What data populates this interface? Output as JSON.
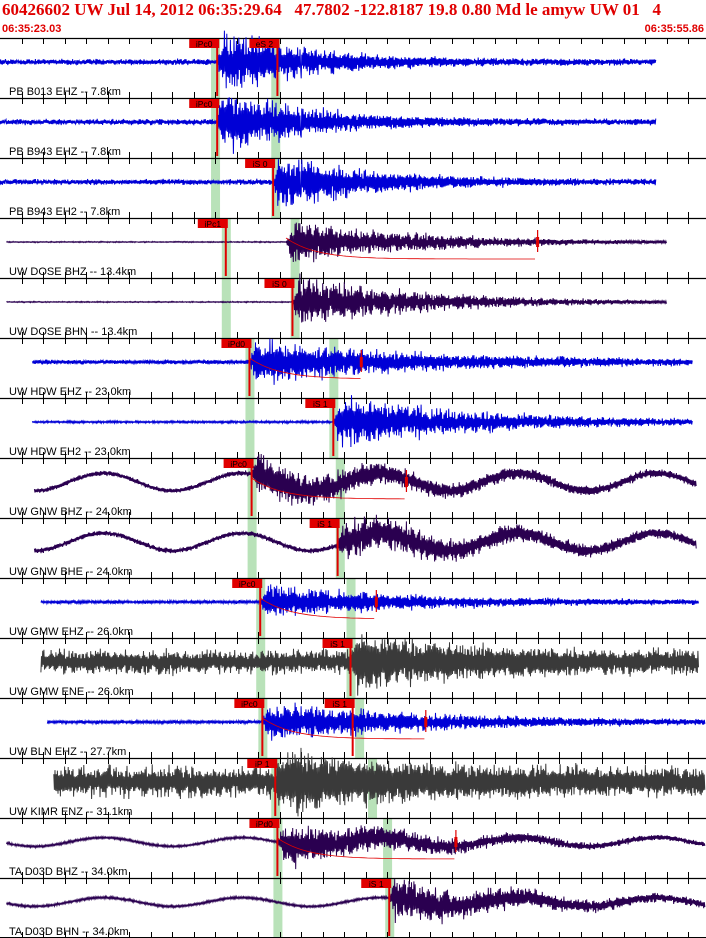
{
  "header": {
    "title": "60426602 UW Jul 14, 2012 06:35:29.64   47.7802 -122.8187 19.8 0.80 Md le amyw UW 01   4",
    "start_time": "06:35:23.03",
    "end_time": "06:35:55.86"
  },
  "colors": {
    "header_text": "#e00000",
    "pick": "#e00000",
    "green_band": "#b9e2b9",
    "trace_blue": "#0000d6",
    "trace_purple": "#2a0050",
    "trace_gray": "#3a3a3a",
    "grid": "#000000"
  },
  "chart_data": {
    "type": "seismogram",
    "x_axis": {
      "start": "06:35:23.03",
      "end": "06:35:55.86",
      "duration_s": 32.83,
      "grid_step_s": 1
    },
    "traces": [
      {
        "label": "PB B013 EHZ -- 7.8km",
        "color": "blue",
        "amp": 5,
        "noise": "low",
        "trace_start_s": 0.0,
        "trace_end_s": 30.5,
        "picks": [
          {
            "label": "iPc0",
            "t_s": 10.1
          },
          {
            "label": "eS 2",
            "t_s": 12.9
          }
        ],
        "bands": [
          10.0,
          12.8
        ],
        "signal_start_s": 10.1,
        "signal_peak": 32,
        "coda_s": 4
      },
      {
        "label": "PB B943 EHZ -- 7.8km",
        "color": "blue",
        "amp": 5,
        "noise": "low",
        "trace_start_s": 0.0,
        "trace_end_s": 30.5,
        "picks": [
          {
            "label": "iPc0",
            "t_s": 10.1
          }
        ],
        "bands": [
          10.0,
          12.8
        ],
        "signal_start_s": 10.1,
        "signal_peak": 32,
        "coda_s": 4
      },
      {
        "label": "PB B943 EH2 -- 7.8km",
        "color": "blue",
        "amp": 5,
        "noise": "low",
        "trace_start_s": 0.0,
        "trace_end_s": 30.5,
        "picks": [
          {
            "label": "iS 0",
            "t_s": 12.7
          }
        ],
        "bands": [
          10.0,
          12.8
        ],
        "signal_start_s": 12.7,
        "signal_peak": 28,
        "coda_s": 4
      },
      {
        "label": "UW DOSE BHZ -- 13.4km",
        "color": "purple",
        "amp": 1,
        "noise": "low",
        "trace_start_s": 0.3,
        "trace_end_s": 31.0,
        "picks": [
          {
            "label": "iPc1",
            "t_s": 10.5
          }
        ],
        "bands": [
          10.5,
          13.7
        ],
        "signal_start_s": 13.3,
        "signal_peak": 22,
        "coda_s": 6,
        "coda_marker_s": 25.0
      },
      {
        "label": "UW DOSE BHN -- 13.4km",
        "color": "purple",
        "amp": 1,
        "noise": "low",
        "trace_start_s": 0.3,
        "trace_end_s": 31.0,
        "picks": [
          {
            "label": "iS 0",
            "t_s": 13.6
          }
        ],
        "bands": [
          10.5,
          13.7
        ],
        "signal_start_s": 13.6,
        "signal_peak": 24,
        "coda_s": 6
      },
      {
        "label": "UW HDW EHZ -- 23.0km",
        "color": "blue",
        "amp": 4,
        "noise": "mid",
        "trace_start_s": 1.5,
        "trace_end_s": 32.2,
        "picks": [
          {
            "label": "iPd0",
            "t_s": 11.6
          }
        ],
        "bands": [
          11.6,
          15.5
        ],
        "signal_start_s": 11.6,
        "signal_peak": 20,
        "coda_s": 8,
        "coda_marker_s": 16.8
      },
      {
        "label": "UW HDW EH2 -- 23.0km",
        "color": "blue",
        "amp": 2,
        "noise": "mid",
        "trace_start_s": 1.5,
        "trace_end_s": 32.2,
        "picks": [
          {
            "label": "iS 1",
            "t_s": 15.5
          }
        ],
        "bands": [
          11.6,
          15.5
        ],
        "signal_start_s": 15.5,
        "signal_peak": 24,
        "coda_s": 7
      },
      {
        "label": "UW GNW BHZ -- 24.0km",
        "color": "purple",
        "amp": 4,
        "noise": "wave",
        "trace_start_s": 1.6,
        "trace_end_s": 32.4,
        "picks": [
          {
            "label": "iPc0",
            "t_s": 11.7
          }
        ],
        "bands": [
          11.7,
          15.8
        ],
        "signal_start_s": 11.7,
        "signal_peak": 18,
        "coda_s": 8,
        "coda_marker_s": 18.9
      },
      {
        "label": "UW GNW BHE -- 24.0km",
        "color": "purple",
        "amp": 4,
        "noise": "wave",
        "trace_start_s": 1.6,
        "trace_end_s": 32.4,
        "picks": [
          {
            "label": "iS 1",
            "t_s": 15.7
          }
        ],
        "bands": [
          11.7,
          15.8
        ],
        "signal_start_s": 15.7,
        "signal_peak": 18,
        "coda_s": 8
      },
      {
        "label": "UW GMW EHZ -- 26.0km",
        "color": "blue",
        "amp": 3,
        "noise": "mid",
        "trace_start_s": 1.9,
        "trace_end_s": 32.5,
        "picks": [
          {
            "label": "iPc0",
            "t_s": 12.1
          }
        ],
        "bands": [
          12.1,
          16.3
        ],
        "signal_start_s": 12.1,
        "signal_peak": 16,
        "coda_s": 7,
        "coda_marker_s": 17.5
      },
      {
        "label": "UW GMW ENE -- 26.0km",
        "color": "gray",
        "amp": 11,
        "noise": "high",
        "trace_start_s": 1.9,
        "trace_end_s": 32.5,
        "picks": [
          {
            "label": "iS 1",
            "t_s": 16.3
          }
        ],
        "bands": [
          12.1,
          16.3
        ],
        "signal_start_s": 16.3,
        "signal_peak": 20,
        "coda_s": 5
      },
      {
        "label": "UW BLN EHZ -- 27.7km",
        "color": "blue",
        "amp": 3,
        "noise": "mid",
        "trace_start_s": 2.2,
        "trace_end_s": 32.8,
        "picks": [
          {
            "label": "iPc0",
            "t_s": 12.2
          },
          {
            "label": "iS 1",
            "t_s": 16.4
          }
        ],
        "bands": [
          12.2,
          16.7
        ],
        "signal_start_s": 12.2,
        "signal_peak": 18,
        "coda_s": 8,
        "coda_marker_s": 19.8
      },
      {
        "label": "UW KIMR ENZ -- 31.1km",
        "color": "gray",
        "amp": 14,
        "noise": "high",
        "trace_start_s": 2.5,
        "trace_end_s": 32.8,
        "picks": [
          {
            "label": "iP 1",
            "t_s": 12.8
          }
        ],
        "bands": [
          12.8,
          17.3
        ],
        "signal_start_s": 12.8,
        "signal_peak": 22,
        "coda_s": 5
      },
      {
        "label": "TA D03D BHZ -- 34.0km",
        "color": "purple",
        "amp": 2,
        "noise": "wave",
        "trace_start_s": 0.3,
        "trace_end_s": 32.8,
        "picks": [
          {
            "label": "iPd0",
            "t_s": 12.9
          }
        ],
        "bands": [
          12.9,
          18.0
        ],
        "signal_start_s": 12.9,
        "signal_peak": 20,
        "coda_s": 7,
        "coda_marker_s": 21.2
      },
      {
        "label": "TA D03D BHN -- 34.0km",
        "color": "purple",
        "amp": 2,
        "noise": "wave",
        "trace_start_s": 0.3,
        "trace_end_s": 32.8,
        "picks": [
          {
            "label": "iS 1",
            "t_s": 18.1
          }
        ],
        "bands": [
          12.9,
          18.1
        ],
        "signal_start_s": 18.1,
        "signal_peak": 20,
        "coda_s": 7
      }
    ]
  }
}
